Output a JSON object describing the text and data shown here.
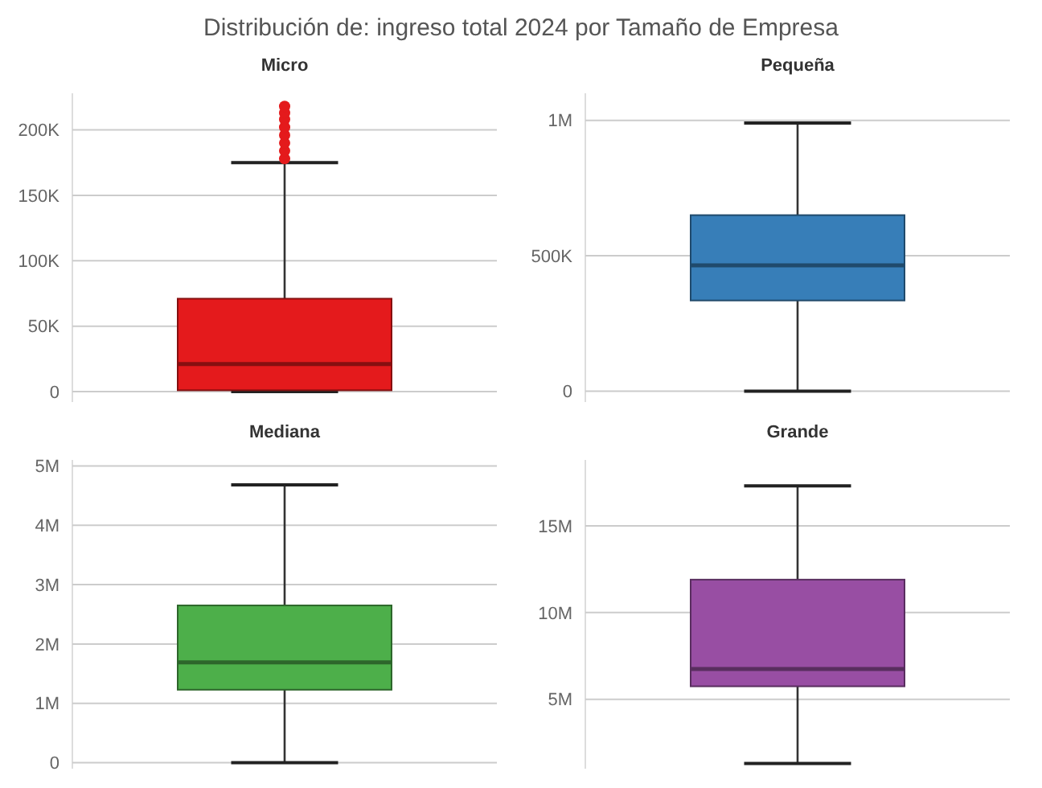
{
  "chart_data": [
    {
      "type": "box",
      "title": "Micro",
      "annotations": [
        "Distribución de: ingreso total 2024 por Tamaño de Empresa"
      ],
      "categories": [
        null
      ],
      "color": "#e41a1c",
      "grid": "y",
      "ylim": [
        -8000,
        228000
      ],
      "yticks": [
        {
          "value": 0,
          "label": "0"
        },
        {
          "value": 50000,
          "label": "50K"
        },
        {
          "value": 100000,
          "label": "100K"
        },
        {
          "value": 150000,
          "label": "150K"
        },
        {
          "value": 200000,
          "label": "200K"
        }
      ],
      "boxes": [
        {
          "low": 0,
          "q1": 1000,
          "median": 21000,
          "q3": 71000,
          "high": 175000,
          "outliers": [
            178000,
            184000,
            190000,
            196000,
            202000,
            208000,
            213000,
            218000
          ]
        }
      ]
    },
    {
      "type": "box",
      "title": "Pequeña",
      "categories": [
        null
      ],
      "color": "#377eb8",
      "grid": "y",
      "ylim": [
        -40000,
        1100000
      ],
      "yticks": [
        {
          "value": 0,
          "label": "0"
        },
        {
          "value": 500000,
          "label": "500K"
        },
        {
          "value": 1000000,
          "label": "1M"
        }
      ],
      "boxes": [
        {
          "low": 0,
          "q1": 335000,
          "median": 465000,
          "q3": 650000,
          "high": 990000
        }
      ]
    },
    {
      "type": "box",
      "title": "Mediana",
      "categories": [
        null
      ],
      "color": "#4daf4a",
      "grid": "y",
      "ylim": [
        -100000,
        5100000
      ],
      "yticks": [
        {
          "value": 0,
          "label": "0"
        },
        {
          "value": 1000000,
          "label": "1M"
        },
        {
          "value": 2000000,
          "label": "2M"
        },
        {
          "value": 3000000,
          "label": "3M"
        },
        {
          "value": 4000000,
          "label": "4M"
        },
        {
          "value": 5000000,
          "label": "5M"
        }
      ],
      "boxes": [
        {
          "low": 0,
          "q1": 1230000,
          "median": 1690000,
          "q3": 2650000,
          "high": 4680000
        }
      ]
    },
    {
      "type": "box",
      "title": "Grande",
      "categories": [
        null
      ],
      "color": "#984ea3",
      "grid": "y",
      "ylim": [
        1000000,
        18800000
      ],
      "yticks": [
        {
          "value": 5000000,
          "label": "5M"
        },
        {
          "value": 10000000,
          "label": "10M"
        },
        {
          "value": 15000000,
          "label": "15M"
        }
      ],
      "boxes": [
        {
          "low": 1300000,
          "q1": 5750000,
          "median": 6750000,
          "q3": 11900000,
          "high": 17300000
        }
      ]
    }
  ]
}
